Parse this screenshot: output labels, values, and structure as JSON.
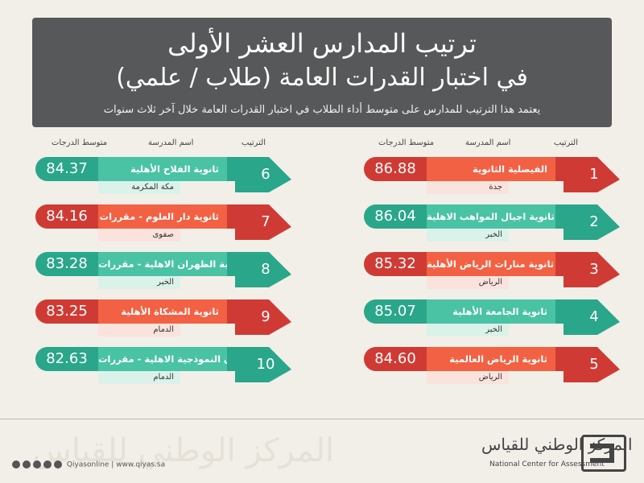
{
  "header": {
    "title_line1": "ترتيب المدارس العشر الأولى",
    "title_line2": "في اختبار القدرات العامة (طلاب / علمي)",
    "subtitle": "يعتمد هذا الترتيب للمدارس على متوسط أداء الطلاب في اختبار القدرات العامة خلال آخر ثلاث سنوات"
  },
  "column_headers": {
    "rank": "الترتيب",
    "school": "اسم المدرسة",
    "score": "متوسط الدرجات"
  },
  "schools": [
    {
      "rank": "1",
      "name": "الفيصلية الثانوية",
      "city": "جدة",
      "score": "86.88",
      "color": "red"
    },
    {
      "rank": "2",
      "name": "ثانوية اجيال المواهب الاهلية",
      "city": "الخبر",
      "score": "86.04",
      "color": "teal"
    },
    {
      "rank": "3",
      "name": "ثانوية منارات الرياض الأهلية",
      "city": "الرياض",
      "score": "85.32",
      "color": "red"
    },
    {
      "rank": "4",
      "name": "ثانوية الجامعة الأهلية",
      "city": "الخبر",
      "score": "85.07",
      "color": "teal"
    },
    {
      "rank": "5",
      "name": "ثانوية الرياض العالمية",
      "city": "الرياض",
      "score": "84.60",
      "color": "red"
    },
    {
      "rank": "6",
      "name": "ثانوية الفلاح الأهلية",
      "city": "مكة المكرمة",
      "score": "84.37",
      "color": "teal"
    },
    {
      "rank": "7",
      "name": "ثانوية دار العلوم - مقررات",
      "city": "صفوى",
      "score": "84.16",
      "color": "red"
    },
    {
      "rank": "8",
      "name": "ثانوية الظهران الاهلية - مقررات",
      "city": "الخبر",
      "score": "83.28",
      "color": "teal"
    },
    {
      "rank": "9",
      "name": "ثانوية المشكاة الأهلية",
      "city": "الدمام",
      "score": "83.25",
      "color": "red"
    },
    {
      "rank": "10",
      "name": "ثانوية الحصان النموذجية الاهلية - مقررات",
      "city": "الدمام",
      "score": "82.63",
      "color": "teal"
    }
  ],
  "colors": {
    "red_dark": "#cf3b34",
    "red_light": "#f26143",
    "teal_dark": "#2aa68a",
    "teal_light": "#49c3a3",
    "header_bg": "#575859"
  },
  "footer": {
    "social_handle": "Qiyasonline | www.qiyas.sa",
    "logo_arabic": "المركز الوطني للقياس",
    "logo_english": "National Center for Assessment"
  }
}
